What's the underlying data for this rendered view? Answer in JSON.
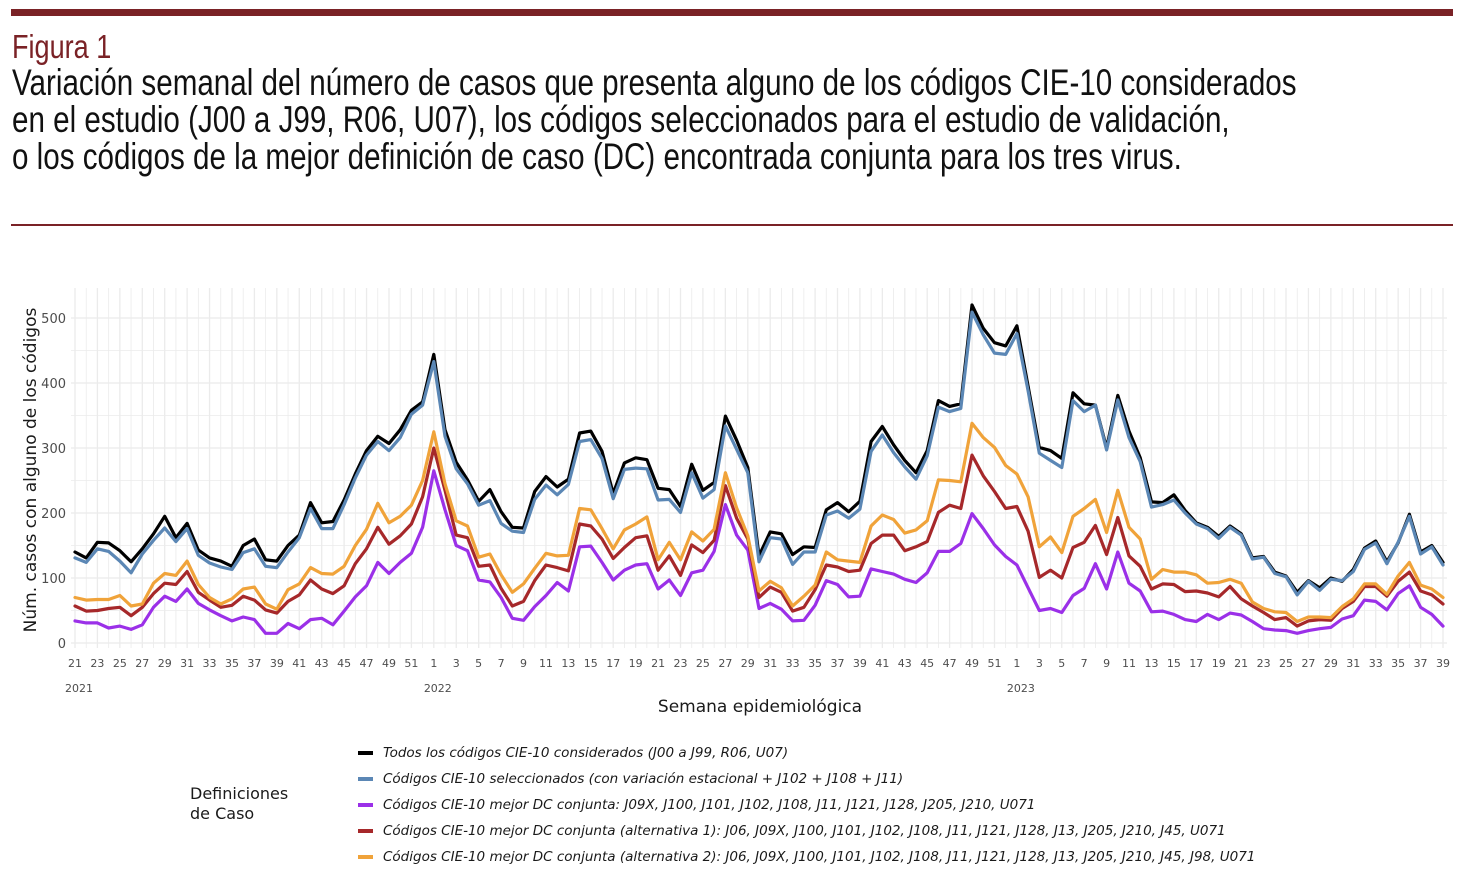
{
  "figure": {
    "label": "Figura 1",
    "title_lines": [
      "Variación semanal del número de casos que presenta alguno de los códigos CIE-10 considerados",
      "en el estudio (J00 a J99, R06, U07), los códigos seleccionados para el estudio de validación,",
      "o los códigos de la mejor definición de caso (DC) encontrada conjunta para los tres virus."
    ],
    "accent_color": "#7a2226"
  },
  "chart_data": {
    "type": "line",
    "title": "Variación semanal del número de casos que presenta alguno de los códigos CIE-10 considerados en el estudio (J00 a J99, R06, U07), los códigos seleccionados para el estudio de validación, o los códigos de la mejor definición de caso (DC) encontrada conjunta para los tres virus.",
    "xlabel": "Semana epidemiológica",
    "ylabel": "Núm. casos con alguno de los códigos",
    "ylim": [
      0,
      520
    ],
    "yticks": [
      0,
      100,
      200,
      300,
      400,
      500
    ],
    "grid": true,
    "x_periods": [
      {
        "year": "2021",
        "start_week": 21,
        "end_week": 52
      },
      {
        "year": "2022",
        "start_week": 1,
        "end_week": 52
      },
      {
        "year": "2023",
        "start_week": 1,
        "end_week": 39
      }
    ],
    "xtick_labels": [
      "21",
      "23",
      "25",
      "27",
      "29",
      "31",
      "33",
      "35",
      "37",
      "39",
      "41",
      "43",
      "45",
      "47",
      "49",
      "51",
      "1",
      "3",
      "5",
      "7",
      "9",
      "11",
      "13",
      "15",
      "17",
      "19",
      "21",
      "23",
      "25",
      "27",
      "29",
      "31",
      "33",
      "35",
      "37",
      "39",
      "41",
      "43",
      "45",
      "47",
      "49",
      "51",
      "1",
      "3",
      "5",
      "7",
      "9",
      "11",
      "13",
      "15",
      "17",
      "19",
      "21",
      "23",
      "25",
      "27",
      "29",
      "31",
      "33",
      "35",
      "37",
      "39"
    ],
    "year_labels": [
      "2021",
      "2022",
      "2023"
    ],
    "legend_title": "Definiciones de Caso",
    "legend_position": "bottom",
    "series": [
      {
        "name": "Todos los códigos CIE-10 considerados (J00 a J99, R06, U07)",
        "color": "#000000",
        "values": [
          140,
          131,
          155,
          154,
          142,
          125,
          145,
          168,
          195,
          162,
          184,
          143,
          131,
          126,
          118,
          150,
          160,
          128,
          126,
          150,
          166,
          216,
          185,
          187,
          220,
          260,
          296,
          318,
          307,
          328,
          358,
          371,
          444,
          328,
          278,
          251,
          218,
          236,
          202,
          178,
          177,
          233,
          256,
          240,
          252,
          323,
          326,
          295,
          230,
          277,
          285,
          282,
          238,
          236,
          210,
          275,
          235,
          247,
          349,
          312,
          270,
          134,
          171,
          168,
          136,
          148,
          147,
          205,
          216,
          202,
          218,
          310,
          333,
          305,
          281,
          262,
          296,
          373,
          364,
          368,
          520,
          484,
          462,
          457,
          488,
          395,
          301,
          296,
          284,
          385,
          368,
          366,
          300,
          381,
          326,
          285,
          217,
          216,
          228,
          204,
          185,
          178,
          164,
          180,
          168,
          131,
          133,
          109,
          103,
          78,
          96,
          85,
          100,
          95,
          113,
          146,
          157,
          125,
          154,
          198,
          140,
          150,
          124
        ]
      },
      {
        "name": "Códigos CIE-10 seleccionados (con variación estacional + J102 + J108 + J11)",
        "color": "#5b87b5",
        "values": [
          131,
          124,
          145,
          141,
          126,
          108,
          137,
          158,
          177,
          156,
          176,
          135,
          123,
          117,
          113,
          139,
          145,
          118,
          116,
          140,
          162,
          207,
          176,
          176,
          213,
          254,
          289,
          310,
          296,
          316,
          352,
          366,
          433,
          318,
          268,
          245,
          212,
          219,
          184,
          172,
          170,
          221,
          243,
          228,
          244,
          310,
          313,
          284,
          222,
          267,
          269,
          268,
          220,
          221,
          201,
          262,
          223,
          236,
          334,
          298,
          262,
          125,
          162,
          160,
          121,
          140,
          140,
          197,
          203,
          192,
          206,
          295,
          320,
          293,
          271,
          252,
          288,
          363,
          356,
          361,
          509,
          474,
          446,
          444,
          476,
          388,
          292,
          281,
          270,
          373,
          356,
          366,
          297,
          374,
          316,
          279,
          209,
          213,
          220,
          200,
          183,
          176,
          161,
          178,
          166,
          129,
          132,
          107,
          102,
          74,
          95,
          81,
          98,
          96,
          110,
          144,
          154,
          122,
          155,
          195,
          137,
          148,
          120
        ]
      },
      {
        "name": "Códigos CIE-10 mejor DC conjunta: J09X, J100, J101, J102, J108, J11, J121, J128, J205, J210, U071",
        "color": "#9b30e8",
        "values": [
          34,
          31,
          31,
          23,
          26,
          21,
          28,
          55,
          72,
          64,
          83,
          61,
          51,
          42,
          34,
          40,
          36,
          15,
          15,
          30,
          22,
          36,
          38,
          28,
          49,
          71,
          88,
          124,
          107,
          124,
          138,
          178,
          265,
          205,
          150,
          142,
          97,
          94,
          70,
          38,
          35,
          56,
          73,
          93,
          80,
          148,
          149,
          124,
          97,
          112,
          120,
          122,
          83,
          97,
          73,
          108,
          112,
          141,
          213,
          166,
          143,
          53,
          61,
          52,
          34,
          35,
          58,
          96,
          90,
          71,
          72,
          114,
          110,
          106,
          98,
          93,
          108,
          141,
          141,
          153,
          199,
          176,
          151,
          133,
          120,
          85,
          50,
          53,
          47,
          73,
          84,
          122,
          83,
          140,
          92,
          80,
          48,
          49,
          44,
          36,
          33,
          44,
          36,
          46,
          43,
          33,
          22,
          20,
          19,
          15,
          19,
          22,
          24,
          37,
          42,
          66,
          64,
          51,
          76,
          88,
          55,
          44,
          26
        ]
      },
      {
        "name": "Códigos CIE-10 mejor DC conjunta (alternativa 1): J06, J09X, J100, J101, J102, J108, J11, J121, J128, J13, J205, J210, J45, U071",
        "color": "#a6282a",
        "values": [
          57,
          49,
          50,
          53,
          55,
          42,
          55,
          76,
          92,
          90,
          110,
          78,
          66,
          55,
          58,
          72,
          66,
          51,
          46,
          64,
          74,
          97,
          83,
          76,
          88,
          122,
          145,
          178,
          152,
          165,
          183,
          225,
          300,
          235,
          166,
          162,
          118,
          120,
          84,
          57,
          64,
          96,
          120,
          116,
          111,
          183,
          180,
          160,
          130,
          147,
          162,
          165,
          112,
          134,
          104,
          151,
          139,
          158,
          242,
          192,
          160,
          70,
          86,
          78,
          49,
          55,
          82,
          120,
          117,
          110,
          112,
          153,
          166,
          166,
          142,
          148,
          156,
          201,
          212,
          207,
          289,
          257,
          233,
          207,
          210,
          172,
          101,
          112,
          100,
          147,
          155,
          181,
          136,
          193,
          134,
          118,
          83,
          91,
          90,
          79,
          80,
          77,
          71,
          87,
          68,
          57,
          47,
          36,
          39,
          26,
          34,
          36,
          35,
          53,
          64,
          87,
          87,
          72,
          95,
          109,
          80,
          74,
          60
        ]
      },
      {
        "name": "Códigos CIE-10 mejor DC conjunta (alternativa 2): J06, J09X, J100, J101, J102, J108, J11, J121, J128, J13, J205, J210, J45, J98, U071",
        "color": "#f0a33a",
        "values": [
          70,
          66,
          67,
          67,
          73,
          57,
          60,
          92,
          107,
          104,
          126,
          90,
          70,
          60,
          68,
          83,
          86,
          60,
          52,
          82,
          91,
          116,
          107,
          106,
          118,
          150,
          175,
          215,
          185,
          195,
          212,
          250,
          325,
          245,
          188,
          180,
          132,
          137,
          105,
          78,
          91,
          115,
          138,
          134,
          135,
          207,
          205,
          176,
          145,
          174,
          183,
          194,
          128,
          155,
          128,
          171,
          157,
          175,
          262,
          208,
          165,
          80,
          95,
          85,
          57,
          72,
          89,
          140,
          128,
          126,
          124,
          180,
          197,
          190,
          169,
          174,
          188,
          251,
          250,
          248,
          338,
          316,
          301,
          273,
          260,
          225,
          148,
          163,
          139,
          195,
          207,
          221,
          170,
          235,
          178,
          160,
          98,
          113,
          109,
          109,
          105,
          92,
          93,
          98,
          92,
          63,
          53,
          48,
          47,
          33,
          40,
          40,
          39,
          56,
          68,
          91,
          91,
          75,
          103,
          124,
          89,
          83,
          70
        ]
      }
    ]
  }
}
